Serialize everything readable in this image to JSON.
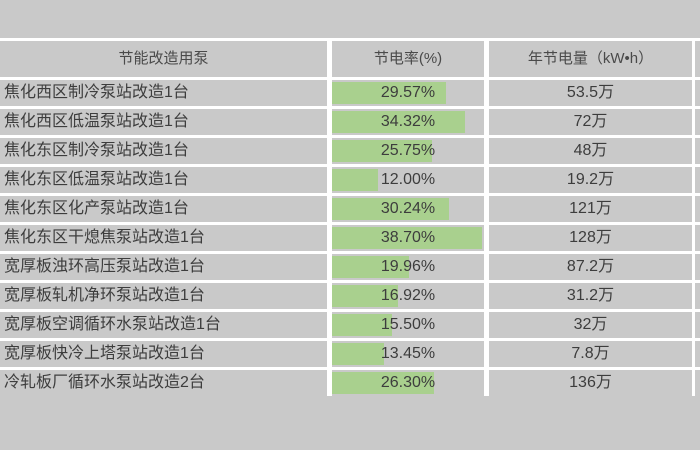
{
  "chart_data": {
    "type": "table",
    "columns": [
      "节能改造用泵",
      "节电率(%)",
      "年节电量（kW•h）"
    ],
    "rows": [
      {
        "pump": "焦化西区制冷泵站改造1台",
        "rate_pct": 29.57,
        "rate_label": "29.57%",
        "annual_kwh": "53.5万"
      },
      {
        "pump": "焦化西区低温泵站改造1台",
        "rate_pct": 34.32,
        "rate_label": "34.32%",
        "annual_kwh": "72万"
      },
      {
        "pump": "焦化东区制冷泵站改造1台",
        "rate_pct": 25.75,
        "rate_label": "25.75%",
        "annual_kwh": "48万"
      },
      {
        "pump": "焦化东区低温泵站改造1台",
        "rate_pct": 12.0,
        "rate_label": "12.00%",
        "annual_kwh": "19.2万"
      },
      {
        "pump": "焦化东区化产泵站改造1台",
        "rate_pct": 30.24,
        "rate_label": "30.24%",
        "annual_kwh": "121万"
      },
      {
        "pump": "焦化东区干熄焦泵站改造1台",
        "rate_pct": 38.7,
        "rate_label": "38.70%",
        "annual_kwh": "128万"
      },
      {
        "pump": "宽厚板浊环高压泵站改造1台",
        "rate_pct": 19.96,
        "rate_label": "19.96%",
        "annual_kwh": "87.2万"
      },
      {
        "pump": "宽厚板轧机净环泵站改造1台",
        "rate_pct": 16.92,
        "rate_label": "16.92%",
        "annual_kwh": "31.2万"
      },
      {
        "pump": "宽厚板空调循环水泵站改造1台",
        "rate_pct": 15.5,
        "rate_label": "15.50%",
        "annual_kwh": "32万"
      },
      {
        "pump": "宽厚板快冷上塔泵站改造1台",
        "rate_pct": 13.45,
        "rate_label": "13.45%",
        "annual_kwh": "7.8万"
      },
      {
        "pump": "冷轧板厂循环水泵站改造2台",
        "rate_pct": 26.3,
        "rate_label": "26.30%",
        "annual_kwh": "136万"
      }
    ],
    "data_bar": {
      "applies_to_column": "节电率(%)",
      "scale_min": 0,
      "scale_max": 39.3,
      "color": "#a9d08e"
    },
    "layout_hints": {
      "grid": "white gridlines on gray cells",
      "background": "#c9c9c9",
      "gridline_color": "#ffffff",
      "text_color": "#3d3d3d"
    }
  }
}
